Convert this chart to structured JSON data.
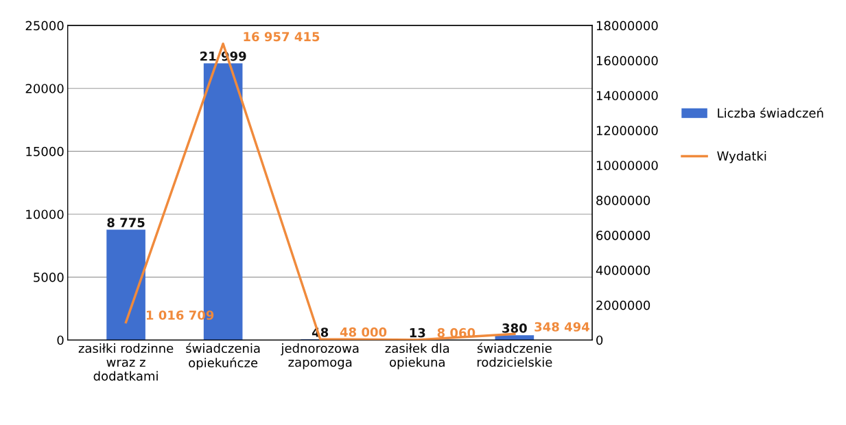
{
  "chart_data": {
    "type": "bar",
    "categories": [
      "zasiłki rodzinne\nwraz z\ndodatkami",
      "świadczenia\nopiekuńcze",
      "jednorozowa\nzapomoga",
      "zasiłek dla\nopiekuna",
      "świadczenie\nrodzicielskie"
    ],
    "series": [
      {
        "name": "Liczba świadczeń",
        "color": "#3f6fcf",
        "values": [
          8775,
          21999,
          48,
          13,
          380
        ],
        "value_labels": [
          "8 775",
          "21 999",
          "48",
          "13",
          "380"
        ]
      },
      {
        "name": "Wydatki",
        "type": "line",
        "axis": "y2",
        "color": "#f08a3c",
        "values": [
          1016709,
          16957415,
          48000,
          8060,
          348494
        ],
        "value_labels": [
          "1 016 709",
          "16 957 415",
          "48 000",
          "8 060",
          "348 494"
        ]
      }
    ],
    "ylim": [
      0,
      25000
    ],
    "yticks": [
      0,
      5000,
      10000,
      15000,
      20000,
      25000
    ],
    "y2lim": [
      0,
      18000000
    ],
    "y2ticks": [
      0,
      2000000,
      4000000,
      6000000,
      8000000,
      10000000,
      12000000,
      14000000,
      16000000,
      18000000
    ],
    "grid": "y",
    "legend": "right",
    "marker": "none"
  }
}
